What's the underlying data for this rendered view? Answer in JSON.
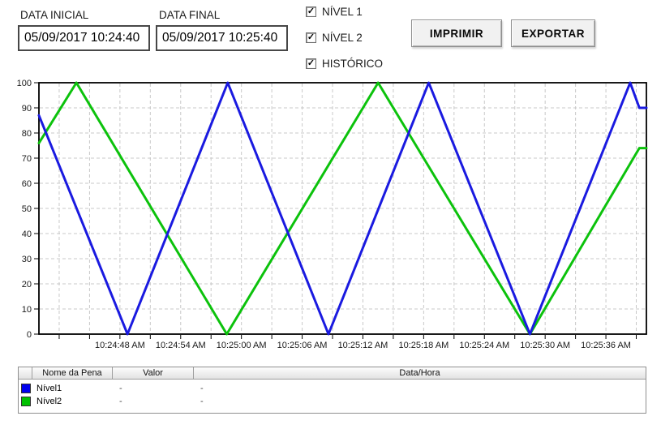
{
  "controls": {
    "data_inicial": {
      "label": "DATA INICIAL",
      "value": "05/09/2017 10:24:40"
    },
    "data_final": {
      "label": "DATA FINAL",
      "value": "05/09/2017 10:25:40"
    },
    "checkboxes": [
      {
        "label": "NÍVEL 1",
        "checked": true
      },
      {
        "label": "NÍVEL 2",
        "checked": true
      },
      {
        "label": "HISTÓRICO",
        "checked": true
      }
    ],
    "imprimir_label": "IMPRIMIR",
    "exportar_label": "EXPORTAR",
    "check_glyph": "✓"
  },
  "chart_data": {
    "type": "line",
    "title": "",
    "xlabel": "",
    "ylabel": "",
    "x_axis": {
      "unit": "seconds after 10:24:40 AM",
      "range_seconds": [
        0,
        60
      ],
      "tick_seconds": [
        8,
        14,
        20,
        26,
        32,
        38,
        44,
        50,
        56
      ],
      "tick_labels": [
        "10:24:48 AM",
        "10:24:54 AM",
        "10:25:00 AM",
        "10:25:06 AM",
        "10:25:12 AM",
        "10:25:18 AM",
        "10:25:24 AM",
        "10:25:30 AM",
        "10:25:36 AM"
      ],
      "minor_grid_seconds": 3
    },
    "y_axis": {
      "min": 0,
      "max": 100,
      "ticks": [
        0,
        10,
        20,
        30,
        40,
        50,
        60,
        70,
        80,
        90,
        100
      ]
    },
    "grid": {
      "style": "dashed",
      "color": "#c8c8c8",
      "on": true
    },
    "legend_position": "none",
    "series": [
      {
        "name": "Nível1",
        "color": "#1a1ae0",
        "points_t_v": [
          [
            0,
            87
          ],
          [
            8.75,
            0
          ],
          [
            18.65,
            100
          ],
          [
            28.6,
            0
          ],
          [
            38.5,
            100
          ],
          [
            48.5,
            0
          ],
          [
            58.4,
            100
          ],
          [
            59.3,
            90
          ],
          [
            60,
            90
          ]
        ]
      },
      {
        "name": "Nível2",
        "color": "#0cc20c",
        "points_t_v": [
          [
            0,
            76
          ],
          [
            3.7,
            100
          ],
          [
            18.55,
            0
          ],
          [
            33.5,
            100
          ],
          [
            48.5,
            0
          ],
          [
            59.3,
            74
          ],
          [
            60,
            74
          ]
        ]
      }
    ]
  },
  "table": {
    "headers": [
      "",
      "Nome da Pena",
      "Valor",
      "Data/Hora"
    ],
    "rows": [
      {
        "swatch_color": "#0000ee",
        "name": "Nível1",
        "valor": "-",
        "data_hora": "-"
      },
      {
        "swatch_color": "#00c000",
        "name": "Nível2",
        "valor": "-",
        "data_hora": "-"
      }
    ]
  }
}
